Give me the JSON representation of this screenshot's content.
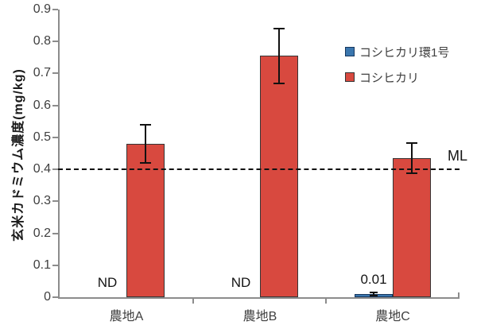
{
  "chart_data": {
    "type": "bar",
    "title": "",
    "ylabel": "玄米カドミウム濃度(mg/kg)",
    "xlabel": "",
    "ylim": [
      0,
      0.9
    ],
    "ytick_interval": 0.1,
    "ytick_labels": [
      "0",
      "0.1",
      "0.2",
      "0.3",
      "0.4",
      "0.5",
      "0.6",
      "0.7",
      "0.8",
      "0.9"
    ],
    "categories": [
      "農地A",
      "農地B",
      "農地C"
    ],
    "series": [
      {
        "name": "コシヒカリ環1号",
        "color": "#3A76AE",
        "border_color": "#17375E",
        "values": [
          null,
          null,
          0.01
        ],
        "errors": [
          null,
          null,
          0.004
        ],
        "bar_labels": [
          "ND",
          "ND",
          "0.01"
        ]
      },
      {
        "name": "コシヒカリ",
        "color": "#D8493F",
        "border_color": "#353535",
        "values": [
          0.48,
          0.755,
          0.435
        ],
        "errors": [
          0.06,
          0.085,
          0.048
        ],
        "bar_labels": [
          "",
          "",
          ""
        ]
      }
    ],
    "reference_line": {
      "value": 0.4,
      "label": "ML",
      "style": "dashed",
      "color": "#111111"
    },
    "legend": {
      "position": "right-top",
      "entries": [
        "コシヒカリ環1号",
        "コシヒカリ"
      ]
    },
    "grid": false,
    "axis_color": "#8C8C8C"
  }
}
